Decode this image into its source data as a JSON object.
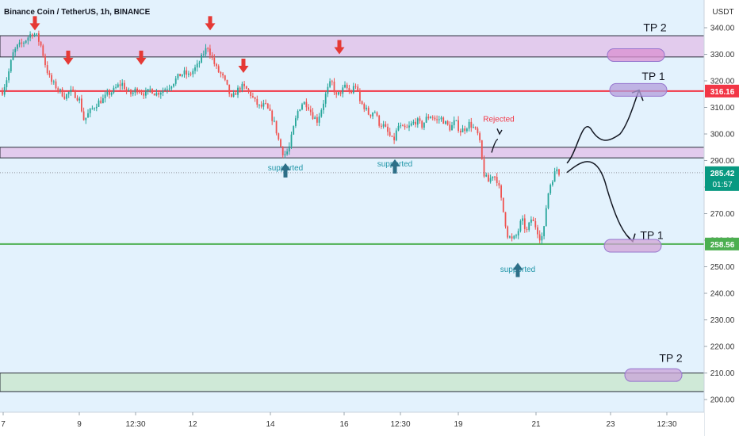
{
  "chart_data": {
    "type": "candlestick",
    "title": "Binance Coin / TetherUS, 1h, BINANCE",
    "y_unit": "USDT",
    "ylim": [
      193,
      341
    ],
    "y_ticks": [
      "340.00",
      "330.00",
      "320.00",
      "310.00",
      "300.00",
      "290.00",
      "280.00",
      "270.00",
      "260.00",
      "250.00",
      "240.00",
      "230.00",
      "220.00",
      "210.00",
      "200.00"
    ],
    "y_tick_values": [
      340,
      330,
      320,
      310,
      300,
      290,
      280,
      270,
      260,
      250,
      240,
      230,
      220,
      210,
      200
    ],
    "x_ticks": [
      "7",
      "9",
      "12:30",
      "12",
      "14",
      "16",
      "12:30",
      "19",
      "21",
      "23",
      "12:30"
    ],
    "price_labels": {
      "upper": {
        "value": 316.16,
        "text": "316.16",
        "color": "#f23645"
      },
      "current": {
        "value": 285.42,
        "text": "285.42",
        "countdown": "01:57",
        "color": "#089981"
      },
      "lower": {
        "value": 258.56,
        "text": "258.56",
        "color": "#4caf50"
      }
    },
    "close_path": [
      [
        3,
        316
      ],
      [
        10,
        322
      ],
      [
        16,
        330
      ],
      [
        22,
        333
      ],
      [
        28,
        334
      ],
      [
        34,
        336
      ],
      [
        40,
        338
      ],
      [
        46,
        337
      ],
      [
        52,
        333
      ],
      [
        58,
        325
      ],
      [
        64,
        320
      ],
      [
        70,
        318
      ],
      [
        76,
        316
      ],
      [
        82,
        314
      ],
      [
        88,
        316
      ],
      [
        94,
        315
      ],
      [
        100,
        313
      ],
      [
        106,
        305
      ],
      [
        112,
        308
      ],
      [
        118,
        310
      ],
      [
        124,
        312
      ],
      [
        130,
        313
      ],
      [
        136,
        315
      ],
      [
        142,
        316
      ],
      [
        148,
        318
      ],
      [
        154,
        319
      ],
      [
        160,
        316
      ],
      [
        166,
        315
      ],
      [
        172,
        317
      ],
      [
        178,
        316
      ],
      [
        184,
        315
      ],
      [
        190,
        317
      ],
      [
        196,
        315
      ],
      [
        202,
        316
      ],
      [
        208,
        317
      ],
      [
        214,
        318
      ],
      [
        220,
        320
      ],
      [
        226,
        322
      ],
      [
        232,
        323
      ],
      [
        238,
        322
      ],
      [
        244,
        324
      ],
      [
        250,
        326
      ],
      [
        256,
        330
      ],
      [
        262,
        333
      ],
      [
        268,
        328
      ],
      [
        274,
        324
      ],
      [
        280,
        322
      ],
      [
        286,
        318
      ],
      [
        292,
        313
      ],
      [
        298,
        316
      ],
      [
        304,
        318
      ],
      [
        310,
        317
      ],
      [
        316,
        315
      ],
      [
        322,
        312
      ],
      [
        328,
        310
      ],
      [
        334,
        311
      ],
      [
        340,
        308
      ],
      [
        346,
        304
      ],
      [
        352,
        297
      ],
      [
        358,
        292
      ],
      [
        364,
        294
      ],
      [
        370,
        302
      ],
      [
        376,
        309
      ],
      [
        382,
        312
      ],
      [
        388,
        311
      ],
      [
        394,
        307
      ],
      [
        400,
        305
      ],
      [
        406,
        310
      ],
      [
        412,
        316
      ],
      [
        418,
        320
      ],
      [
        424,
        314
      ],
      [
        430,
        316
      ],
      [
        436,
        318
      ],
      [
        442,
        315
      ],
      [
        448,
        319
      ],
      [
        454,
        312
      ],
      [
        460,
        310
      ],
      [
        466,
        307
      ],
      [
        472,
        309
      ],
      [
        478,
        304
      ],
      [
        484,
        303
      ],
      [
        490,
        300
      ],
      [
        496,
        297
      ],
      [
        502,
        303
      ],
      [
        508,
        302
      ],
      [
        514,
        302
      ],
      [
        520,
        304
      ],
      [
        526,
        305
      ],
      [
        532,
        303
      ],
      [
        538,
        306
      ],
      [
        544,
        307
      ],
      [
        550,
        305
      ],
      [
        556,
        306
      ],
      [
        562,
        304
      ],
      [
        568,
        302
      ],
      [
        574,
        305
      ],
      [
        580,
        301
      ],
      [
        586,
        302
      ],
      [
        592,
        304
      ],
      [
        598,
        302
      ],
      [
        604,
        299
      ],
      [
        610,
        285
      ],
      [
        616,
        282
      ],
      [
        622,
        285
      ],
      [
        628,
        282
      ],
      [
        634,
        272
      ],
      [
        640,
        262
      ],
      [
        646,
        260
      ],
      [
        652,
        262
      ],
      [
        658,
        268
      ],
      [
        664,
        263
      ],
      [
        670,
        268
      ],
      [
        676,
        265
      ],
      [
        682,
        260
      ],
      [
        686,
        264
      ],
      [
        690,
        276
      ],
      [
        694,
        281
      ],
      [
        698,
        284
      ],
      [
        702,
        287
      ],
      [
        706,
        285
      ]
    ],
    "horizontal_lines": [
      {
        "value": 316.16,
        "color": "#f23645"
      },
      {
        "value": 258.56,
        "color": "#4caf50"
      },
      {
        "value": 285.42,
        "color": "#9598a1",
        "style": "dotted"
      }
    ],
    "zones": [
      {
        "from": 329,
        "to": 337,
        "color": "#e1bee7"
      },
      {
        "from": 291,
        "to": 295,
        "color": "#e1bee7"
      },
      {
        "from": 203,
        "to": 210,
        "color": "#c8e6c9"
      }
    ],
    "annotations": [
      {
        "text": "TP 2",
        "x": 826,
        "value": 338.6,
        "color": "#131722"
      },
      {
        "text": "TP 1",
        "x": 824,
        "value": 320.3,
        "color": "#131722"
      },
      {
        "text": "TP 1",
        "x": 822,
        "value": 260.5,
        "color": "#131722"
      },
      {
        "text": "TP 2",
        "x": 846,
        "value": 214.2,
        "color": "#131722"
      },
      {
        "text": "Rejected",
        "x": 629,
        "value": 304.7,
        "color": "#f23645"
      },
      {
        "text": "supported",
        "x": 360,
        "value": 286.2,
        "color": "#2196a8"
      },
      {
        "text": "supported",
        "x": 498,
        "value": 287.7,
        "color": "#2196a8"
      },
      {
        "text": "supported",
        "x": 653,
        "value": 248.0,
        "color": "#2196a8"
      }
    ],
    "target_highlights": [
      {
        "x": 802,
        "value": 329.7,
        "color": "#d98fd0"
      },
      {
        "x": 805,
        "value": 316.6,
        "color": "#b39ddb"
      },
      {
        "x": 798,
        "value": 257.9,
        "color": "#d1a3d6"
      },
      {
        "x": 824,
        "value": 209.2,
        "color": "#c9a1d8"
      }
    ],
    "down_arrows": [
      [
        44,
        339
      ],
      [
        86,
        326
      ],
      [
        178,
        326
      ],
      [
        265,
        339
      ],
      [
        307,
        323
      ],
      [
        428,
        330
      ]
    ],
    "up_arrows": [
      [
        360,
        289
      ],
      [
        498,
        290.5
      ],
      [
        653,
        251.5
      ]
    ],
    "legend": "none",
    "grid": false
  }
}
